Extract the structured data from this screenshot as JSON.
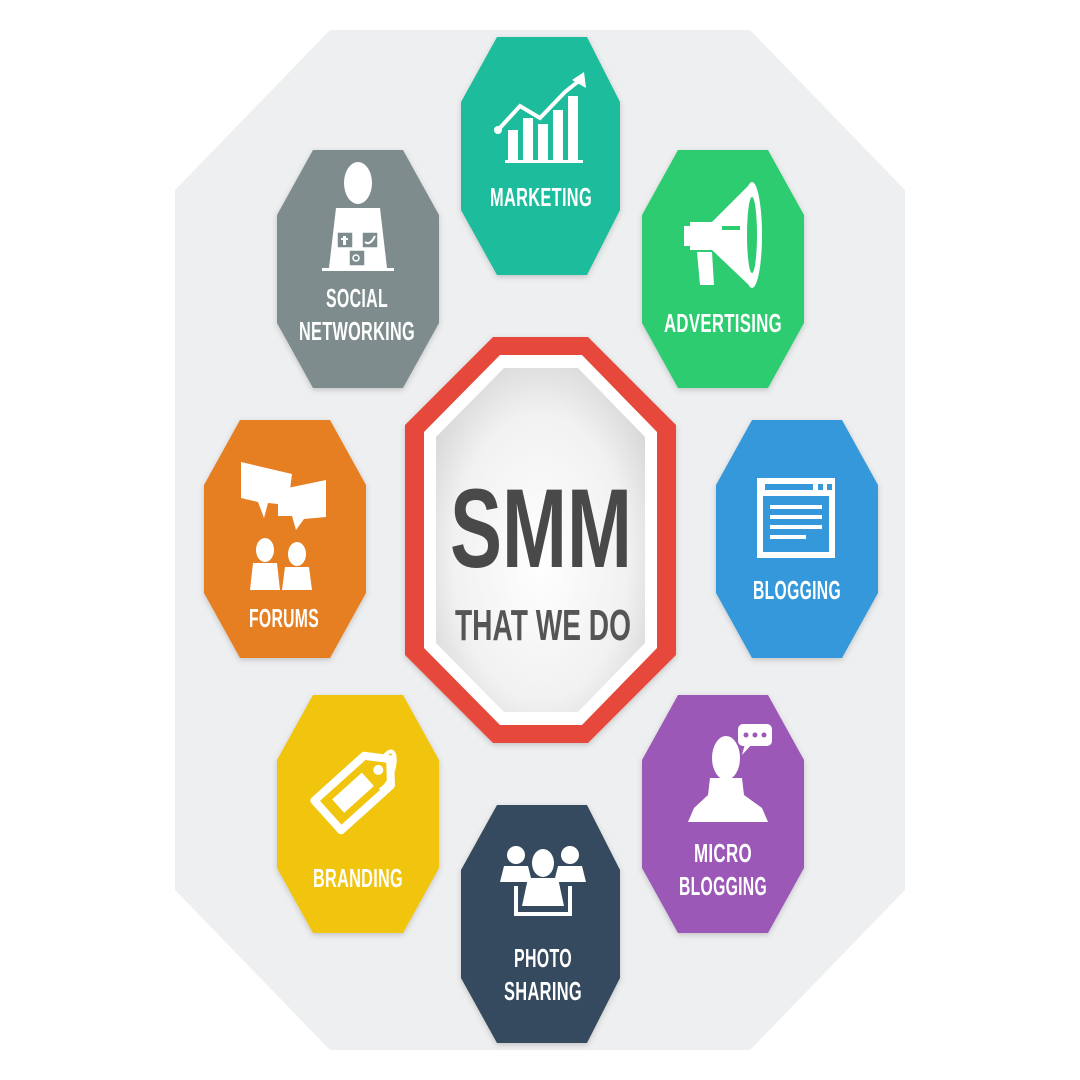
{
  "center": {
    "title": "SMM",
    "subtitle": "THAT WE DO",
    "ring_color": "#e64a3b"
  },
  "nodes": [
    {
      "id": "marketing",
      "lines": [
        "MARKETING"
      ],
      "color": "#1fbc9c",
      "icon": "growth-chart-icon"
    },
    {
      "id": "advertising",
      "lines": [
        "ADVERTISING"
      ],
      "color": "#2ecc71",
      "icon": "megaphone-icon"
    },
    {
      "id": "blogging",
      "lines": [
        "BLOGGING"
      ],
      "color": "#3498db",
      "icon": "browser-window-icon"
    },
    {
      "id": "micro-blogging",
      "lines": [
        "MICRO",
        "BLOGGING"
      ],
      "color": "#9b59b6",
      "icon": "person-speech-bubble-icon"
    },
    {
      "id": "photo-sharing",
      "lines": [
        "PHOTO",
        "SHARING"
      ],
      "color": "#34495e",
      "icon": "group-people-icon"
    },
    {
      "id": "branding",
      "lines": [
        "BRANDING"
      ],
      "color": "#f1c40f",
      "icon": "price-tag-icon"
    },
    {
      "id": "forums",
      "lines": [
        "FORUMS"
      ],
      "color": "#e67e22",
      "icon": "chat-people-icon"
    },
    {
      "id": "social-networking",
      "lines": [
        "SOCIAL",
        "NETWORKING"
      ],
      "color": "#7f8c8d",
      "icon": "person-social-icons-icon"
    }
  ]
}
